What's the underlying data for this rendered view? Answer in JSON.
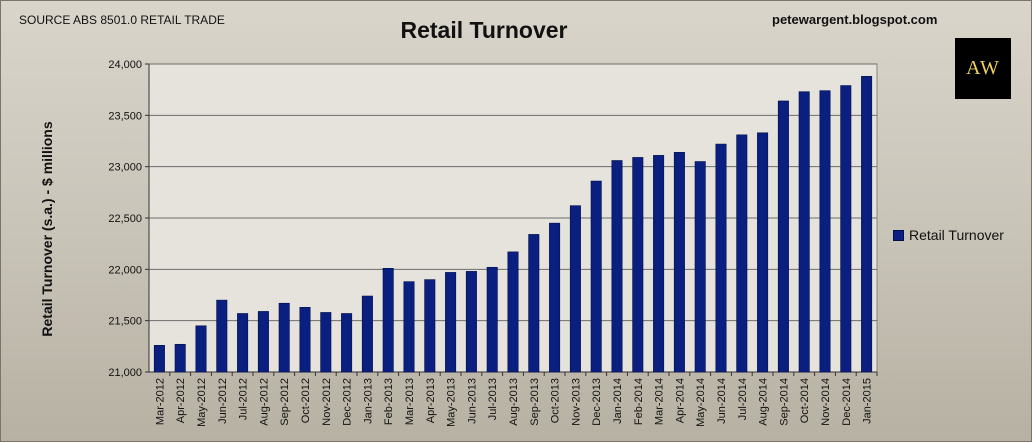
{
  "header": {
    "source": "SOURCE ABS 8501.0 RETAIL TRADE",
    "blog": "petewargent.blogspot.com",
    "logo_text": "AW"
  },
  "colors": {
    "bar": "#0a1f80",
    "bar_stroke": "#00104a",
    "gridline": "#6e6e6e",
    "plot_background": "#e6e3dc"
  },
  "chart_data": {
    "type": "bar",
    "title": "Retail Turnover",
    "ylabel": "Retail Turnover (s.a.) - $ millions",
    "xlabel": "",
    "ylim": [
      21000,
      24000
    ],
    "y_ticks": [
      "21,000",
      "21,500",
      "22,000",
      "22,500",
      "23,000",
      "23,500",
      "24,000"
    ],
    "grid": true,
    "legend_position": "right",
    "categories": [
      "Mar-2012",
      "Apr-2012",
      "May-2012",
      "Jun-2012",
      "Jul-2012",
      "Aug-2012",
      "Sep-2012",
      "Oct-2012",
      "Nov-2012",
      "Dec-2012",
      "Jan-2013",
      "Feb-2013",
      "Mar-2013",
      "Apr-2013",
      "May-2013",
      "Jun-2013",
      "Jul-2013",
      "Aug-2013",
      "Sep-2013",
      "Oct-2013",
      "Nov-2013",
      "Dec-2013",
      "Jan-2014",
      "Feb-2014",
      "Mar-2014",
      "Apr-2014",
      "May-2014",
      "Jun-2014",
      "Jul-2014",
      "Aug-2014",
      "Sep-2014",
      "Oct-2014",
      "Nov-2014",
      "Dec-2014",
      "Jan-2015"
    ],
    "series": [
      {
        "name": "Retail Turnover",
        "values": [
          21260,
          21270,
          21450,
          21700,
          21570,
          21590,
          21670,
          21630,
          21580,
          21570,
          21740,
          22010,
          21880,
          21900,
          21970,
          21980,
          22020,
          22170,
          22340,
          22450,
          22620,
          22860,
          23060,
          23090,
          23110,
          23140,
          23050,
          23220,
          23310,
          23330,
          23640,
          23730,
          23740,
          23790,
          23880
        ]
      }
    ]
  }
}
